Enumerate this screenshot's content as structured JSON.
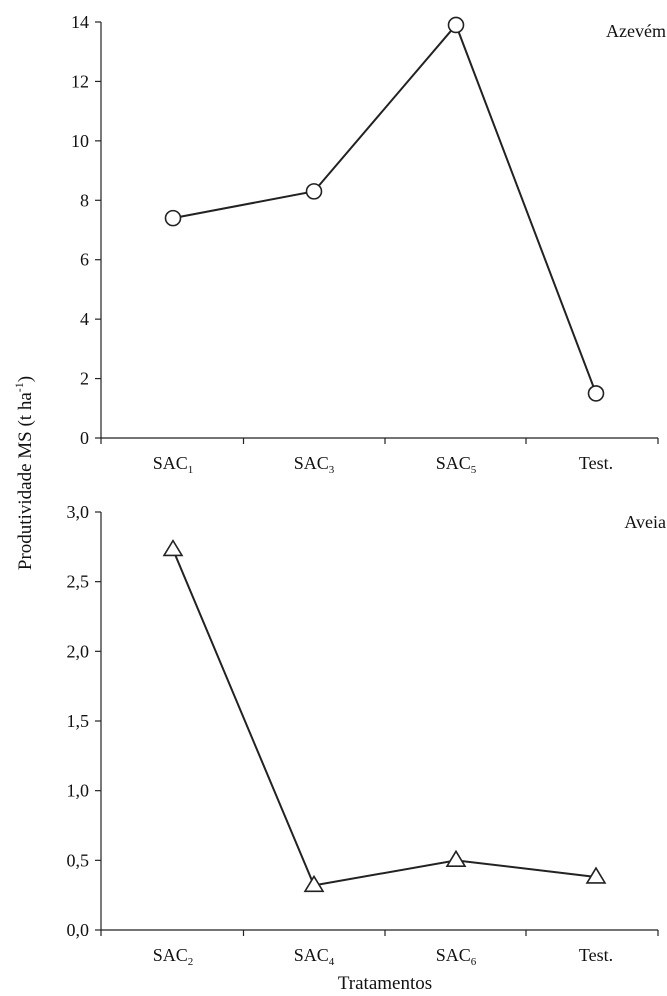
{
  "figure": {
    "ylabel_main": "Produtividade MS (t ha",
    "ylabel_sup": "-1",
    "ylabel_close": ")",
    "xlabel": "Tratamentos"
  },
  "chart_data": [
    {
      "type": "line",
      "panel_label": "Azevém",
      "categories": [
        {
          "base": "SAC",
          "sub": "1"
        },
        {
          "base": "SAC",
          "sub": "3"
        },
        {
          "base": "SAC",
          "sub": "5"
        },
        {
          "base": "Test.",
          "sub": ""
        }
      ],
      "values": [
        7.4,
        8.3,
        13.9,
        1.5
      ],
      "marker": "circle",
      "ylim": [
        0,
        14
      ],
      "yticks": [
        0,
        2,
        4,
        6,
        8,
        10,
        12,
        14
      ],
      "ytick_labels": [
        "0",
        "2",
        "4",
        "6",
        "8",
        "10",
        "12",
        "14"
      ]
    },
    {
      "type": "line",
      "panel_label": "Aveia",
      "categories": [
        {
          "base": "SAC",
          "sub": "2"
        },
        {
          "base": "SAC",
          "sub": "4"
        },
        {
          "base": "SAC",
          "sub": "6"
        },
        {
          "base": "Test.",
          "sub": ""
        }
      ],
      "values": [
        2.73,
        0.32,
        0.5,
        0.38
      ],
      "marker": "triangle",
      "ylim": [
        0,
        3
      ],
      "yticks": [
        0,
        0.5,
        1.0,
        1.5,
        2.0,
        2.5,
        3.0
      ],
      "ytick_labels": [
        "0,0",
        "0,5",
        "1,0",
        "1,5",
        "2,0",
        "2,5",
        "3,0"
      ]
    }
  ]
}
